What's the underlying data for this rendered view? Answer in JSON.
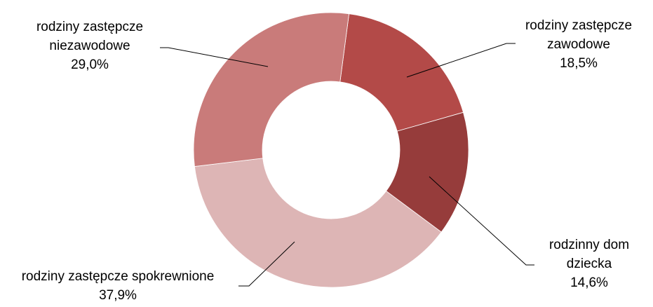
{
  "chart_data": {
    "type": "pie",
    "donut": true,
    "legend": "none",
    "slices": [
      {
        "name": "rodziny zastępcze zawodowe",
        "value": 18.5,
        "label_lines": [
          "rodziny zastępcze",
          "zawodowe",
          "18,5%"
        ],
        "color": "#b34a48"
      },
      {
        "name": "rodzinny dom dziecka",
        "value": 14.6,
        "label_lines": [
          "rodzinny dom",
          "dziecka",
          "14,6%"
        ],
        "color": "#963c3b"
      },
      {
        "name": "rodziny zastępcze spokrewnione",
        "value": 37.9,
        "label_lines": [
          "rodziny zastępcze spokrewnione",
          "37,9%"
        ],
        "color": "#ddb5b5"
      },
      {
        "name": "rodziny zastępcze niezawodowe",
        "value": 29.0,
        "label_lines": [
          "rodziny zastępcze",
          "niezawodowe",
          "29,0%"
        ],
        "color": "#c97b7a"
      }
    ]
  }
}
